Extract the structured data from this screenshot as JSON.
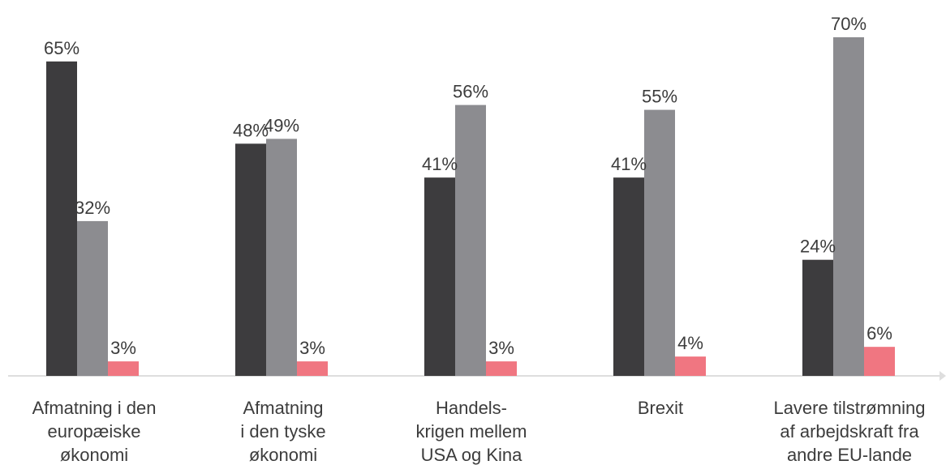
{
  "chart_data": {
    "type": "bar",
    "categories": [
      [
        "Afmatning i den",
        "europæiske",
        "økonomi"
      ],
      [
        "Afmatning",
        "i den tyske",
        "økonomi"
      ],
      [
        "Handels-",
        "krigen mellem",
        "USA og Kina"
      ],
      [
        "Brexit"
      ],
      [
        "Lavere tilstrømning",
        "af arbejdskraft fra",
        "andre EU-lande"
      ]
    ],
    "series": [
      {
        "values": [
          65,
          48,
          41,
          41,
          24
        ],
        "color": "#3d3c3e"
      },
      {
        "values": [
          32,
          49,
          56,
          55,
          70
        ],
        "color": "#8c8c90"
      },
      {
        "values": [
          3,
          3,
          3,
          4,
          6
        ],
        "color": "#f07681"
      }
    ],
    "value_suffix": "%",
    "ylim": [
      0,
      70
    ],
    "grid": false,
    "legend": "none",
    "axis_color": "#dedede",
    "text_color": "#3c3c3c"
  }
}
